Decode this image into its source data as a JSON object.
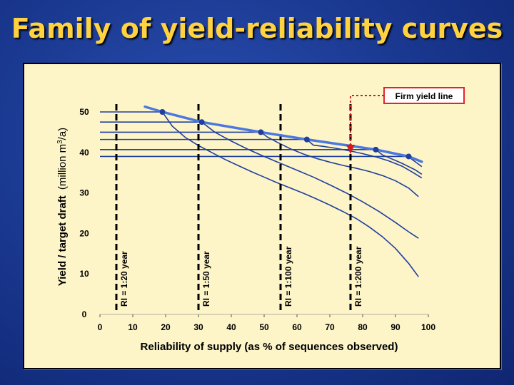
{
  "slide": {
    "title": "Family of yield-reliability curves"
  },
  "chart_data": {
    "type": "line",
    "xlabel": "Reliability of supply (as % of sequences observed)",
    "ylabel_main": "Yield / target draft",
    "ylabel_unit_pre": "(million m",
    "ylabel_unit_sup": "3",
    "ylabel_unit_post": "/a)",
    "xlim": [
      0,
      100
    ],
    "ylim": [
      0,
      50
    ],
    "x_ticks": [
      0,
      10,
      20,
      30,
      40,
      50,
      60,
      70,
      80,
      90,
      100
    ],
    "y_ticks": [
      0,
      10,
      20,
      30,
      40,
      50
    ],
    "grid": false,
    "firm_yield_label": "Firm yield line",
    "firm_yield_line": {
      "x": [
        13.7,
        19,
        31,
        49,
        63,
        84,
        94,
        98
      ],
      "y": [
        51.3,
        50.0,
        47.5,
        45.0,
        43.2,
        40.7,
        39.0,
        37.7
      ]
    },
    "firm_yield_markers": {
      "x": [
        19,
        31,
        49,
        63,
        84,
        94
      ],
      "y": [
        50.0,
        47.5,
        45.0,
        43.2,
        40.7,
        39.0
      ]
    },
    "return_periods": [
      {
        "label": "RI = 1:20 year",
        "x": 5
      },
      {
        "label": "RI = 1:50 year",
        "x": 30
      },
      {
        "label": "RI = 1:100 year",
        "x": 55
      },
      {
        "label": "RI = 1:200 year",
        "x": 76.3
      }
    ],
    "series": [
      {
        "x": [
          0,
          19,
          22,
          26,
          30,
          34,
          38,
          42,
          46,
          50,
          54,
          58,
          62,
          66,
          70,
          74,
          78,
          82,
          86,
          90,
          94,
          97
        ],
        "y": [
          50.0,
          50.0,
          46.5,
          43.7,
          41.7,
          40.0,
          38.3,
          36.8,
          35.3,
          33.9,
          32.5,
          31.2,
          29.9,
          28.5,
          27.0,
          25.4,
          23.7,
          21.6,
          19.2,
          16.3,
          12.6,
          9.3
        ]
      },
      {
        "x": [
          0,
          31,
          35,
          40,
          45,
          50,
          55,
          60,
          65,
          70,
          75,
          80,
          85,
          90,
          94,
          97
        ],
        "y": [
          47.5,
          47.5,
          45.0,
          42.8,
          40.8,
          39.0,
          37.3,
          35.6,
          33.9,
          32.0,
          30.0,
          27.8,
          25.4,
          22.7,
          20.4,
          18.8
        ]
      },
      {
        "x": [
          0,
          49,
          51,
          54,
          58,
          62,
          66,
          70,
          74,
          78,
          82,
          86,
          90,
          94,
          97
        ],
        "y": [
          45.0,
          45.0,
          43.8,
          42.5,
          40.9,
          39.6,
          38.5,
          37.6,
          36.8,
          36.1,
          35.3,
          34.3,
          33.0,
          31.2,
          29.1
        ]
      },
      {
        "x": [
          0,
          63,
          65,
          68,
          72,
          76,
          80,
          84,
          88,
          92,
          95,
          98
        ],
        "y": [
          43.2,
          43.2,
          41.8,
          41.5,
          41.0,
          40.4,
          39.7,
          38.9,
          37.9,
          36.6,
          35.2,
          33.7
        ]
      },
      {
        "x": [
          0,
          84,
          86,
          88,
          90,
          92,
          94,
          96,
          98
        ],
        "y": [
          40.7,
          40.7,
          39.4,
          38.7,
          38.0,
          37.3,
          36.5,
          35.7,
          34.6
        ]
      },
      {
        "x": [
          0,
          94,
          95,
          96,
          97,
          98
        ],
        "y": [
          39.0,
          39.0,
          38.3,
          37.7,
          37.1,
          36.5
        ]
      }
    ]
  },
  "colors": {
    "title": "#ffd23f",
    "panel": "#fdf4c8",
    "curve": "#1f3f9e",
    "firm_yield": "#4a78e0",
    "marker": "#1f3f9e",
    "dashed": "#000000",
    "arrow": "#d41b1b",
    "label_box": "#e6232b"
  }
}
